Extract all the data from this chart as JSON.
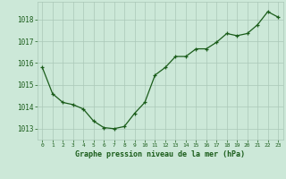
{
  "x": [
    0,
    1,
    2,
    3,
    4,
    5,
    6,
    7,
    8,
    9,
    10,
    11,
    12,
    13,
    14,
    15,
    16,
    17,
    18,
    19,
    20,
    21,
    22,
    23
  ],
  "y": [
    1015.8,
    1014.6,
    1014.2,
    1014.1,
    1013.9,
    1013.35,
    1013.05,
    1013.0,
    1013.1,
    1013.7,
    1014.2,
    1015.45,
    1015.8,
    1016.3,
    1016.3,
    1016.65,
    1016.65,
    1016.95,
    1017.35,
    1017.25,
    1017.35,
    1017.75,
    1018.35,
    1018.1
  ],
  "line_color": "#1a5c1a",
  "marker_color": "#1a5c1a",
  "bg_color": "#cce8d8",
  "grid_color": "#aac8b8",
  "xlabel": "Graphe pression niveau de la mer (hPa)",
  "xlabel_color": "#1a5c1a",
  "tick_color": "#1a5c1a",
  "ylim": [
    1012.5,
    1018.8
  ],
  "yticks": [
    1013,
    1014,
    1015,
    1016,
    1017,
    1018
  ],
  "xticks": [
    0,
    1,
    2,
    3,
    4,
    5,
    6,
    7,
    8,
    9,
    10,
    11,
    12,
    13,
    14,
    15,
    16,
    17,
    18,
    19,
    20,
    21,
    22,
    23
  ],
  "xtick_labels": [
    "0",
    "1",
    "2",
    "3",
    "4",
    "5",
    "6",
    "7",
    "8",
    "9",
    "10",
    "11",
    "12",
    "13",
    "14",
    "15",
    "16",
    "17",
    "18",
    "19",
    "20",
    "21",
    "22",
    "23"
  ]
}
